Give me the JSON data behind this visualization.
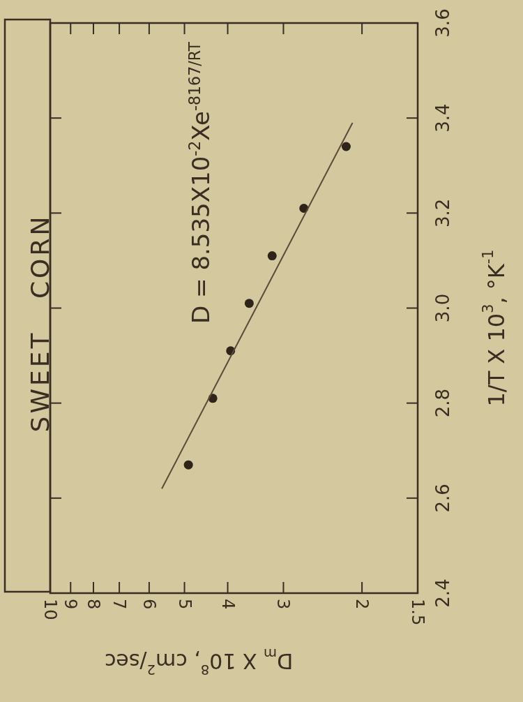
{
  "chart_data": {
    "type": "scatter",
    "title": "SWEET CORN",
    "xlabel": "D$_{m}$ X 10$^{8}$, cm$^{2}$/sec",
    "ylabel": "1/T X 10$^{3}$, °K$^{-1}$",
    "annotations": [
      "D = 8.535X10$^{-2}$Xe$^{-8167/RT}$"
    ],
    "log": "x",
    "xlim": [
      10,
      1.5
    ],
    "ylim": [
      2.4,
      3.6
    ],
    "xticks": [
      10,
      9,
      8,
      7,
      6,
      5,
      4,
      3,
      2,
      1.5
    ],
    "yticks": [
      2.4,
      2.6,
      2.8,
      {
        "value": 3,
        "label": "3.0"
      },
      3.2,
      3.4,
      3.6
    ],
    "grid": false,
    "series": [
      {
        "color": "#2e241a",
        "marker": "circle",
        "x": [
          2.17,
          2.7,
          3.18,
          3.58,
          3.94,
          4.32,
          4.9
        ],
        "values": [
          3.34,
          3.21,
          3.11,
          3.01,
          2.91,
          2.81,
          2.67
        ]
      },
      {
        "type": "line",
        "color": "#5a4a3a",
        "line_style": "solid",
        "x": [
          2.1,
          5.62
        ],
        "values": [
          3.39,
          2.62
        ]
      }
    ]
  }
}
